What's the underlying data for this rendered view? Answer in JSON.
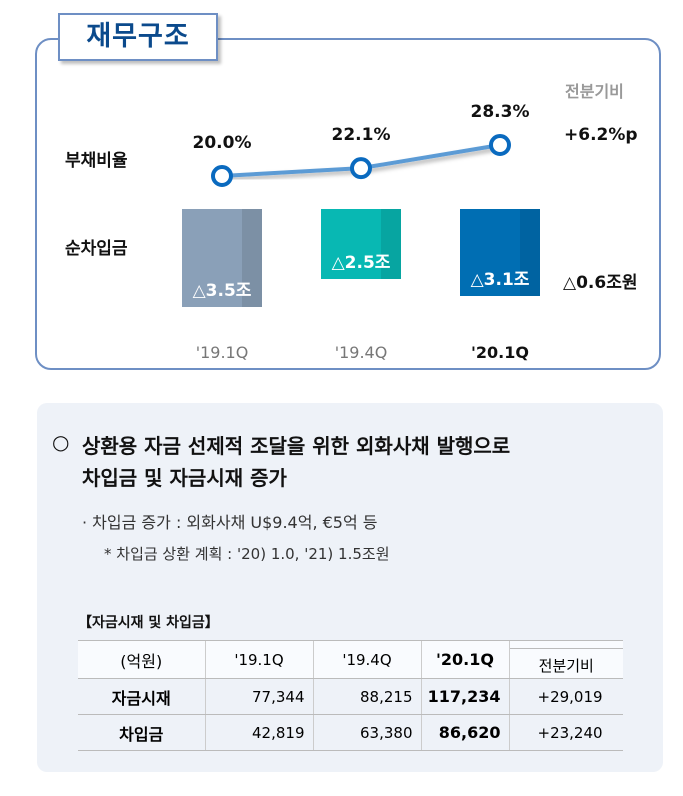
{
  "section_title": "재무구조",
  "compare_label": "전분기비",
  "chart_data": {
    "type": "line+bar",
    "categories": [
      "'19.1Q",
      "'19.4Q",
      "'20.1Q"
    ],
    "series": [
      {
        "name": "부채비율",
        "type": "line",
        "values": [
          20.0,
          22.1,
          28.3
        ],
        "labels": [
          "20.0%",
          "22.1%",
          "28.3%"
        ],
        "change": "+6.2%p",
        "color": "#5b9bd5"
      },
      {
        "name": "순차입금",
        "type": "bar",
        "values": [
          3.5,
          2.5,
          3.1
        ],
        "labels": [
          "△3.5조",
          "△2.5조",
          "△3.1조"
        ],
        "change": "△0.6조원",
        "colors": [
          "#8aa0b8",
          "#08b8b3",
          "#006eb3"
        ]
      }
    ]
  },
  "bullet": {
    "marker": "○",
    "text_line1": "상환용 자금 선제적 조달을 위한 외화사채 발행으로",
    "text_line2": "차입금 및 자금시재 증가",
    "sub1": "· 차입금 증가 : 외화사채 U$9.4억, €5억 등",
    "sub2": "* 차입금 상환 계획 : '20) 1.0, '21) 1.5조원"
  },
  "table": {
    "title": "【자금시재 및 차입금】",
    "headers": [
      "(억원)",
      "'19.1Q",
      "'19.4Q",
      "'20.1Q",
      "전분기비"
    ],
    "rows": [
      [
        "자금시재",
        "77,344",
        "88,215",
        "117,234",
        "+29,019"
      ],
      [
        "차입금",
        "42,819",
        "63,380",
        "86,620",
        "+23,240"
      ]
    ]
  }
}
